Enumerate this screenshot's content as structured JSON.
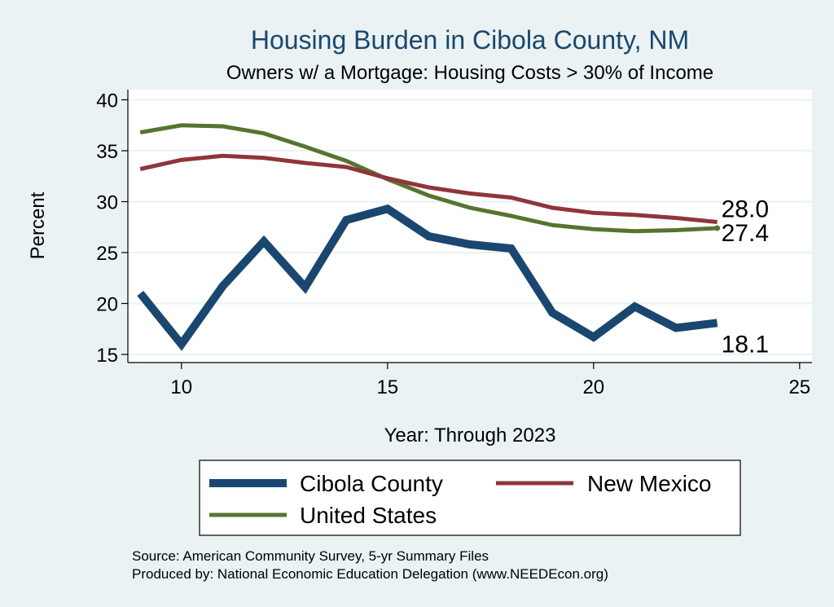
{
  "chart_data": {
    "type": "line",
    "title": "Housing Burden in Cibola County, NM",
    "subtitle": "Owners w/ a Mortgage: Housing Costs > 30% of Income",
    "xlabel": "Year: Through 2023",
    "ylabel": "Percent",
    "xlim": [
      8.7,
      25.3
    ],
    "ylim": [
      14.2,
      41
    ],
    "xticks": [
      10,
      15,
      20,
      25
    ],
    "yticks": [
      15,
      20,
      25,
      30,
      35,
      40
    ],
    "grid": true,
    "x": [
      9,
      10,
      11,
      12,
      13,
      14,
      15,
      16,
      17,
      18,
      19,
      20,
      21,
      22,
      23
    ],
    "series": [
      {
        "name": "Cibola County",
        "color": "#1a476f",
        "width": 10,
        "values": [
          21.0,
          16.0,
          21.7,
          26.1,
          21.6,
          28.2,
          29.3,
          26.6,
          25.8,
          25.4,
          19.1,
          16.7,
          19.7,
          17.6,
          18.1
        ],
        "end_label": "18.1"
      },
      {
        "name": "New Mexico",
        "color": "#90353b",
        "width": 5,
        "values": [
          33.2,
          34.1,
          34.5,
          34.3,
          33.8,
          33.4,
          32.3,
          31.4,
          30.8,
          30.4,
          29.4,
          28.9,
          28.7,
          28.4,
          28.0
        ],
        "end_label": "28.0"
      },
      {
        "name": "United States",
        "color": "#55752f",
        "width": 5,
        "values": [
          36.8,
          37.5,
          37.4,
          36.7,
          35.4,
          34.0,
          32.2,
          30.6,
          29.4,
          28.6,
          27.7,
          27.3,
          27.1,
          27.2,
          27.4
        ],
        "end_label": "27.4"
      }
    ],
    "legend": [
      "Cibola County",
      "New Mexico",
      "United States"
    ]
  },
  "footer": {
    "source": "Source: American Community Survey, 5-yr Summary Files",
    "produced": "Produced by: National Economic Education Delegation (www.NEEDEcon.org)"
  }
}
